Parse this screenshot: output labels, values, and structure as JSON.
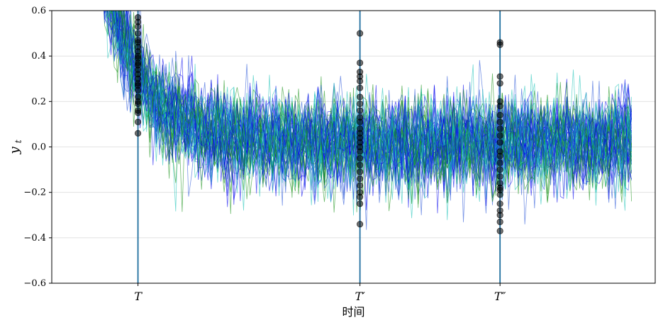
{
  "chart_data": {
    "type": "line",
    "title": "",
    "xlabel": "时间",
    "ylabel": "y_t",
    "ylabel_main": "y",
    "ylabel_sub": "t",
    "ylim": [
      -0.6,
      0.6
    ],
    "yticks": [
      -0.6,
      -0.4,
      -0.2,
      0.0,
      0.2,
      0.4,
      0.6
    ],
    "ytick_labels": [
      "−0.6",
      "−0.4",
      "−0.2",
      "0.0",
      "0.2",
      "0.4",
      "0.6"
    ],
    "xlim": [
      -40,
      240
    ],
    "x_range": [
      0,
      230
    ],
    "grid": "horizontal",
    "legend": "none",
    "n_series": 60,
    "series_colors": [
      "#0000ee",
      "#138f13",
      "#17c1b5",
      "#1f4fd6"
    ],
    "mean_curve": {
      "start": 0.95,
      "end": 0.02,
      "decay": 18,
      "noise_sd": 0.1
    },
    "markers": [
      {
        "label": "T",
        "x": 0,
        "points": [
          0.57,
          0.55,
          0.53,
          0.5,
          0.47,
          0.46,
          0.44,
          0.42,
          0.4,
          0.39,
          0.37,
          0.36,
          0.34,
          0.32,
          0.3,
          0.28,
          0.27,
          0.25,
          0.22,
          0.2,
          0.19,
          0.16,
          0.15,
          0.11,
          0.06
        ]
      },
      {
        "label": "T′",
        "x": 103,
        "points": [
          0.5,
          0.37,
          0.33,
          0.31,
          0.29,
          0.26,
          0.22,
          0.19,
          0.16,
          0.13,
          0.11,
          0.08,
          0.06,
          0.04,
          0.02,
          0.0,
          -0.02,
          -0.05,
          -0.08,
          -0.11,
          -0.14,
          -0.17,
          -0.2,
          -0.22,
          -0.25,
          -0.34
        ]
      },
      {
        "label": "T″",
        "x": 168,
        "points": [
          0.46,
          0.45,
          0.31,
          0.28,
          0.2,
          0.18,
          0.14,
          0.11,
          0.08,
          0.05,
          0.02,
          -0.02,
          -0.04,
          -0.07,
          -0.1,
          -0.13,
          -0.16,
          -0.18,
          -0.19,
          -0.21,
          -0.25,
          -0.28,
          -0.3,
          -0.33,
          -0.37
        ]
      }
    ],
    "marker_color": "#000000",
    "vline_color": "#1f6f9f"
  }
}
